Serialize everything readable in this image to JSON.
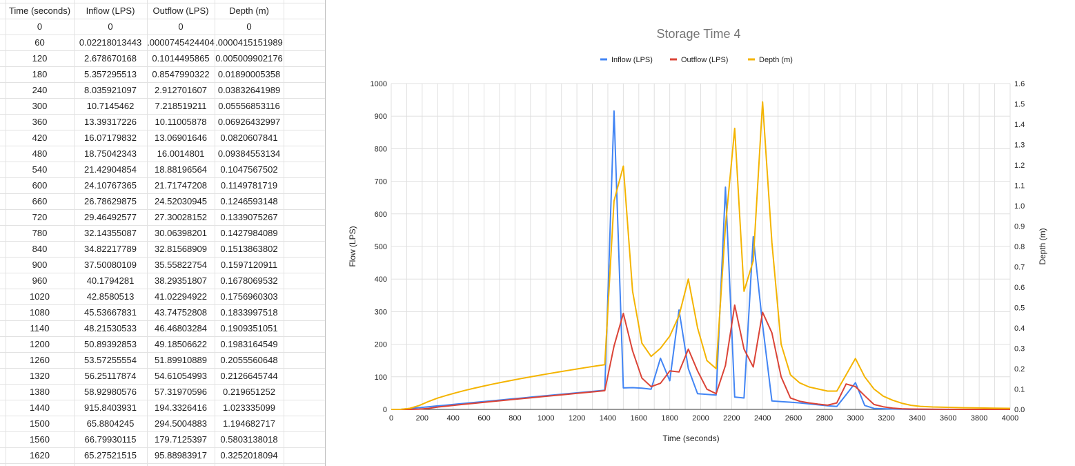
{
  "sheet": {
    "headers": [
      "Time (seconds)",
      "Inflow (LPS)",
      "Outflow (LPS)",
      "Depth (m)"
    ],
    "rows": [
      [
        "0",
        "0",
        "0",
        "0"
      ],
      [
        "60",
        "0.02218013443",
        ".0000745424404",
        ".0000415151989"
      ],
      [
        "120",
        "2.678670168",
        "0.1014495865",
        "0.005009902176"
      ],
      [
        "180",
        "5.357295513",
        "0.8547990322",
        "0.01890005358"
      ],
      [
        "240",
        "8.035921097",
        "2.912701607",
        "0.03832641989"
      ],
      [
        "300",
        "10.7145462",
        "7.218519211",
        "0.05556853116"
      ],
      [
        "360",
        "13.39317226",
        "10.11005878",
        "0.06926432997"
      ],
      [
        "420",
        "16.07179832",
        "13.06901646",
        "0.0820607841"
      ],
      [
        "480",
        "18.75042343",
        "16.0014801",
        "0.09384553134"
      ],
      [
        "540",
        "21.42904854",
        "18.88196564",
        "0.1047567502"
      ],
      [
        "600",
        "24.10767365",
        "21.71747208",
        "0.1149781719"
      ],
      [
        "660",
        "26.78629875",
        "24.52030945",
        "0.1246593148"
      ],
      [
        "720",
        "29.46492577",
        "27.30028152",
        "0.1339075267"
      ],
      [
        "780",
        "32.14355087",
        "30.06398201",
        "0.1427984089"
      ],
      [
        "840",
        "34.82217789",
        "32.81568909",
        "0.1513863802"
      ],
      [
        "900",
        "37.50080109",
        "35.55822754",
        "0.1597120911"
      ],
      [
        "960",
        "40.1794281",
        "38.29351807",
        "0.1678069532"
      ],
      [
        "1020",
        "42.8580513",
        "41.02294922",
        "0.1756960303"
      ],
      [
        "1080",
        "45.53667831",
        "43.74752808",
        "0.1833997518"
      ],
      [
        "1140",
        "48.21530533",
        "46.46803284",
        "0.1909351051"
      ],
      [
        "1200",
        "50.89392853",
        "49.18506622",
        "0.1983164549"
      ],
      [
        "1260",
        "53.57255554",
        "51.89910889",
        "0.2055560648"
      ],
      [
        "1320",
        "56.25117874",
        "54.61054993",
        "0.2126645744"
      ],
      [
        "1380",
        "58.92980576",
        "57.31970596",
        "0.219651252"
      ],
      [
        "1440",
        "915.8403931",
        "194.3326416",
        "1.023335099"
      ],
      [
        "1500",
        "65.8804245",
        "294.5004883",
        "1.194682717"
      ],
      [
        "1560",
        "66.79930115",
        "179.7125397",
        "0.5803138018"
      ],
      [
        "1620",
        "65.27521515",
        "95.88983917",
        "0.3252018094"
      ]
    ]
  },
  "chart_data": {
    "type": "line",
    "title": "Storage Time 4",
    "xlabel": "Time (seconds)",
    "ylabel": "Flow (LPS)",
    "y2label": "Depth (m)",
    "xlim": [
      0,
      4000
    ],
    "ylim": [
      0,
      1000
    ],
    "y2lim": [
      0,
      1.6
    ],
    "x_ticks": [
      "0",
      "200",
      "400",
      "600",
      "800",
      "1000",
      "1200",
      "1400",
      "1600",
      "1800",
      "2000",
      "2200",
      "2400",
      "2600",
      "2800",
      "3000",
      "3200",
      "3400",
      "3600",
      "3800",
      "4000"
    ],
    "y_ticks": [
      "0",
      "100",
      "200",
      "300",
      "400",
      "500",
      "600",
      "700",
      "800",
      "900",
      "1000"
    ],
    "y2_ticks": [
      "0.0",
      "0.1",
      "0.2",
      "0.3",
      "0.4",
      "0.5",
      "0.6",
      "0.7",
      "0.8",
      "0.9",
      "1.0",
      "1.1",
      "1.2",
      "1.3",
      "1.4",
      "1.5",
      "1.6"
    ],
    "grid": true,
    "legend_position": "top",
    "series": [
      {
        "name": "Inflow (LPS)",
        "color": "#4285f4",
        "axis": "left",
        "points": [
          [
            0,
            0
          ],
          [
            60,
            0.02
          ],
          [
            120,
            2.68
          ],
          [
            180,
            5.36
          ],
          [
            240,
            8.04
          ],
          [
            300,
            10.71
          ],
          [
            360,
            13.39
          ],
          [
            420,
            16.07
          ],
          [
            480,
            18.75
          ],
          [
            540,
            21.43
          ],
          [
            600,
            24.11
          ],
          [
            660,
            26.79
          ],
          [
            720,
            29.46
          ],
          [
            780,
            32.14
          ],
          [
            840,
            34.82
          ],
          [
            900,
            37.5
          ],
          [
            960,
            40.18
          ],
          [
            1020,
            42.86
          ],
          [
            1080,
            45.54
          ],
          [
            1140,
            48.22
          ],
          [
            1200,
            50.89
          ],
          [
            1260,
            53.57
          ],
          [
            1320,
            56.25
          ],
          [
            1380,
            58.93
          ],
          [
            1440,
            915.84
          ],
          [
            1500,
            65.88
          ],
          [
            1560,
            66.8
          ],
          [
            1620,
            65.28
          ],
          [
            1680,
            62
          ],
          [
            1740,
            157
          ],
          [
            1800,
            88
          ],
          [
            1860,
            305
          ],
          [
            1920,
            125
          ],
          [
            1980,
            48
          ],
          [
            2040,
            46
          ],
          [
            2100,
            44
          ],
          [
            2160,
            682
          ],
          [
            2220,
            38
          ],
          [
            2280,
            35
          ],
          [
            2340,
            530
          ],
          [
            2400,
            260
          ],
          [
            2460,
            26
          ],
          [
            2520,
            24
          ],
          [
            2580,
            22
          ],
          [
            2640,
            20
          ],
          [
            2700,
            17
          ],
          [
            2760,
            14
          ],
          [
            2820,
            11
          ],
          [
            2880,
            9
          ],
          [
            2940,
            45
          ],
          [
            3000,
            82
          ],
          [
            3060,
            12
          ],
          [
            3120,
            3
          ],
          [
            3180,
            2
          ],
          [
            3240,
            1
          ],
          [
            3300,
            0.5
          ],
          [
            3360,
            0
          ],
          [
            3500,
            0
          ],
          [
            3700,
            0
          ],
          [
            4000,
            0
          ]
        ]
      },
      {
        "name": "Outflow (LPS)",
        "color": "#db4437",
        "axis": "left",
        "points": [
          [
            0,
            0
          ],
          [
            60,
            0
          ],
          [
            120,
            0.1
          ],
          [
            180,
            0.85
          ],
          [
            240,
            2.91
          ],
          [
            300,
            7.22
          ],
          [
            360,
            10.11
          ],
          [
            420,
            13.07
          ],
          [
            480,
            16
          ],
          [
            540,
            18.88
          ],
          [
            600,
            21.72
          ],
          [
            660,
            24.52
          ],
          [
            720,
            27.3
          ],
          [
            780,
            30.06
          ],
          [
            840,
            32.82
          ],
          [
            900,
            35.56
          ],
          [
            960,
            38.29
          ],
          [
            1020,
            41.02
          ],
          [
            1080,
            43.75
          ],
          [
            1140,
            46.47
          ],
          [
            1200,
            49.19
          ],
          [
            1260,
            51.9
          ],
          [
            1320,
            54.61
          ],
          [
            1380,
            57.32
          ],
          [
            1440,
            194.33
          ],
          [
            1500,
            294.5
          ],
          [
            1560,
            179.71
          ],
          [
            1620,
            95.89
          ],
          [
            1680,
            70
          ],
          [
            1740,
            80
          ],
          [
            1800,
            118
          ],
          [
            1860,
            115
          ],
          [
            1920,
            185
          ],
          [
            1980,
            118
          ],
          [
            2040,
            62
          ],
          [
            2100,
            48
          ],
          [
            2160,
            135
          ],
          [
            2220,
            320
          ],
          [
            2280,
            185
          ],
          [
            2340,
            130
          ],
          [
            2400,
            298
          ],
          [
            2460,
            235
          ],
          [
            2520,
            100
          ],
          [
            2580,
            35
          ],
          [
            2640,
            25
          ],
          [
            2700,
            20
          ],
          [
            2760,
            16
          ],
          [
            2820,
            13
          ],
          [
            2880,
            20
          ],
          [
            2940,
            78
          ],
          [
            3000,
            70
          ],
          [
            3060,
            42
          ],
          [
            3120,
            15
          ],
          [
            3180,
            8
          ],
          [
            3240,
            4
          ],
          [
            3300,
            2
          ],
          [
            3360,
            1
          ],
          [
            3500,
            0.5
          ],
          [
            3700,
            0
          ],
          [
            4000,
            0
          ]
        ]
      },
      {
        "name": "Depth (m)",
        "color": "#f4b400",
        "axis": "right",
        "points": [
          [
            0,
            0
          ],
          [
            60,
            0
          ],
          [
            120,
            0.005
          ],
          [
            180,
            0.0189
          ],
          [
            240,
            0.0383
          ],
          [
            300,
            0.0556
          ],
          [
            360,
            0.0693
          ],
          [
            420,
            0.0821
          ],
          [
            480,
            0.0938
          ],
          [
            540,
            0.1048
          ],
          [
            600,
            0.115
          ],
          [
            660,
            0.1247
          ],
          [
            720,
            0.1339
          ],
          [
            780,
            0.1428
          ],
          [
            840,
            0.1514
          ],
          [
            900,
            0.1597
          ],
          [
            960,
            0.1678
          ],
          [
            1020,
            0.1757
          ],
          [
            1080,
            0.1834
          ],
          [
            1140,
            0.1909
          ],
          [
            1200,
            0.1983
          ],
          [
            1260,
            0.2056
          ],
          [
            1320,
            0.2127
          ],
          [
            1380,
            0.2197
          ],
          [
            1440,
            1.0233
          ],
          [
            1500,
            1.1947
          ],
          [
            1560,
            0.5803
          ],
          [
            1620,
            0.3252
          ],
          [
            1680,
            0.26
          ],
          [
            1740,
            0.3
          ],
          [
            1800,
            0.36
          ],
          [
            1860,
            0.46
          ],
          [
            1920,
            0.64
          ],
          [
            1980,
            0.4
          ],
          [
            2040,
            0.24
          ],
          [
            2100,
            0.2
          ],
          [
            2160,
            0.9
          ],
          [
            2220,
            1.38
          ],
          [
            2280,
            0.58
          ],
          [
            2340,
            0.73
          ],
          [
            2400,
            1.51
          ],
          [
            2460,
            0.82
          ],
          [
            2520,
            0.32
          ],
          [
            2580,
            0.17
          ],
          [
            2640,
            0.13
          ],
          [
            2700,
            0.11
          ],
          [
            2760,
            0.1
          ],
          [
            2820,
            0.09
          ],
          [
            2880,
            0.09
          ],
          [
            2940,
            0.17
          ],
          [
            3000,
            0.25
          ],
          [
            3060,
            0.16
          ],
          [
            3120,
            0.1
          ],
          [
            3180,
            0.065
          ],
          [
            3240,
            0.045
          ],
          [
            3300,
            0.03
          ],
          [
            3360,
            0.02
          ],
          [
            3420,
            0.015
          ],
          [
            3500,
            0.012
          ],
          [
            3600,
            0.01
          ],
          [
            3700,
            0.008
          ],
          [
            3800,
            0.007
          ],
          [
            3900,
            0.006
          ],
          [
            4000,
            0.005
          ]
        ]
      }
    ]
  }
}
